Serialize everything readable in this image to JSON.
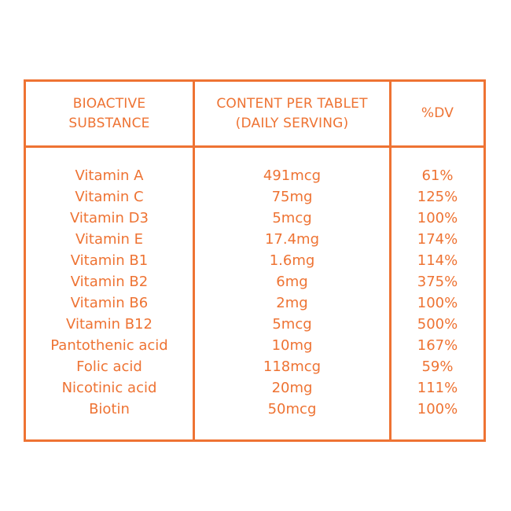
{
  "accent_color": "#EE7333",
  "background_color": "#FFFFFF",
  "table": {
    "header": {
      "substance": "BIOACTIVE\nSUBSTANCE",
      "content": "CONTENT PER TABLET\n(DAILY SERVING)",
      "dv": "%DV"
    },
    "rows": [
      {
        "substance": "Vitamin A",
        "content": "491mcg",
        "dv": "61%"
      },
      {
        "substance": "Vitamin C",
        "content": "75mg",
        "dv": "125%"
      },
      {
        "substance": "Vitamin D3",
        "content": "5mcg",
        "dv": "100%"
      },
      {
        "substance": "Vitamin E",
        "content": "17.4mg",
        "dv": "174%"
      },
      {
        "substance": "Vitamin B1",
        "content": "1.6mg",
        "dv": "114%"
      },
      {
        "substance": "Vitamin B2",
        "content": "6mg",
        "dv": "375%"
      },
      {
        "substance": "Vitamin B6",
        "content": "2mg",
        "dv": "100%"
      },
      {
        "substance": "Vitamin B12",
        "content": "5mcg",
        "dv": "500%"
      },
      {
        "substance": "Pantothenic acid",
        "content": "10mg",
        "dv": "167%"
      },
      {
        "substance": "Folic acid",
        "content": "118mcg",
        "dv": "59%"
      },
      {
        "substance": "Nicotinic acid",
        "content": "20mg",
        "dv": "111%"
      },
      {
        "substance": "Biotin",
        "content": "50mcg",
        "dv": "100%"
      }
    ]
  },
  "chart_data": {
    "type": "table",
    "title": "",
    "columns": [
      "BIOACTIVE SUBSTANCE",
      "CONTENT PER TABLET (DAILY SERVING)",
      "%DV"
    ],
    "rows": [
      [
        "Vitamin A",
        "491mcg",
        "61%"
      ],
      [
        "Vitamin C",
        "75mg",
        "125%"
      ],
      [
        "Vitamin D3",
        "5mcg",
        "100%"
      ],
      [
        "Vitamin E",
        "17.4mg",
        "174%"
      ],
      [
        "Vitamin B1",
        "1.6mg",
        "114%"
      ],
      [
        "Vitamin B2",
        "6mg",
        "375%"
      ],
      [
        "Vitamin B6",
        "2mg",
        "100%"
      ],
      [
        "Vitamin B12",
        "5mcg",
        "500%"
      ],
      [
        "Pantothenic acid",
        "10mg",
        "167%"
      ],
      [
        "Folic acid",
        "118mcg",
        "59%"
      ],
      [
        "Nicotinic acid",
        "20mg",
        "111%"
      ],
      [
        "Biotin",
        "50mcg",
        "100%"
      ]
    ]
  }
}
